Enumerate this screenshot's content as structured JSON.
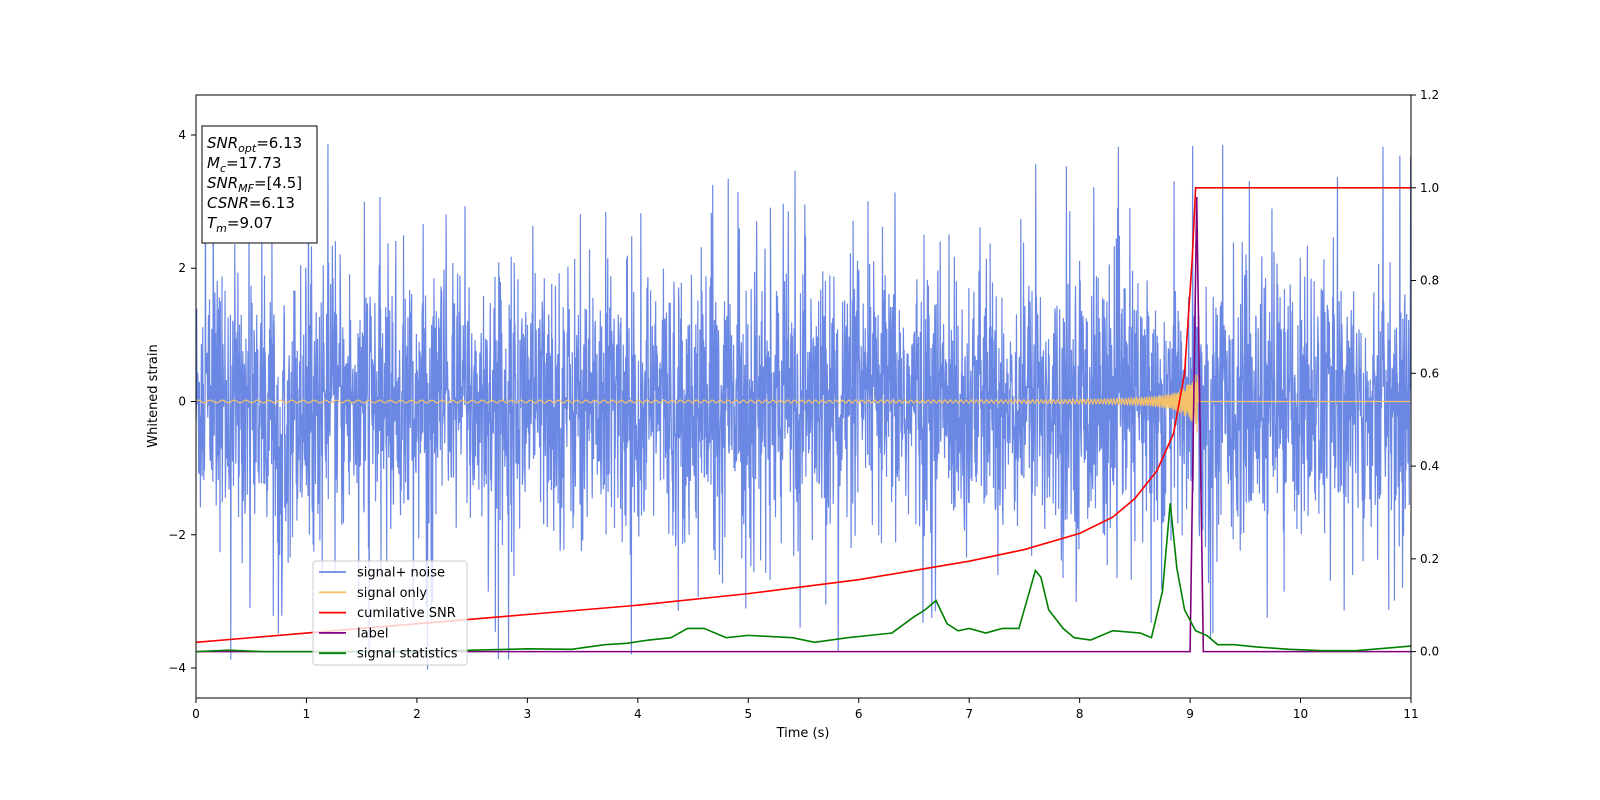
{
  "chart_data": {
    "type": "line",
    "xlabel": "Time (s)",
    "ylabel": "Whitened strain",
    "xlim": [
      0,
      11
    ],
    "ylim": [
      -4.45,
      4.6
    ],
    "y2lim": [
      -0.1,
      1.2
    ],
    "x_ticks": [
      "0",
      "1",
      "2",
      "3",
      "4",
      "5",
      "6",
      "7",
      "8",
      "9",
      "10",
      "11"
    ],
    "y_ticks": [
      "4",
      "2",
      "0",
      "−2",
      "−4"
    ],
    "y2_ticks": [
      "1.2",
      "1.0",
      "0.8",
      "0.6",
      "0.4",
      "0.2",
      "0.0"
    ],
    "grid": false,
    "legend_position": "lower-left",
    "textbox": [
      {
        "sym": "SNR",
        "sub": "opt",
        "value": "=6.13"
      },
      {
        "sym": "M",
        "sub": "c",
        "value": "=17.73"
      },
      {
        "sym": "SNR",
        "sub": "MF",
        "value": "=[4.5]"
      },
      {
        "sym": "CSNR",
        "sub": "",
        "value": "=6.13"
      },
      {
        "sym": "T",
        "sub": "m",
        "value": "=9.07"
      }
    ],
    "series": [
      {
        "name": "signal+ noise",
        "color": "#6a87e4",
        "axis": "left",
        "description": "noise ~N(0,1) with occasional spikes up to about 4.2"
      },
      {
        "name": "signal only",
        "color": "#f5c26b",
        "axis": "left",
        "chirp": {
          "t_merger": 9.07,
          "start_amplitude": 0.02,
          "end_amplitude": 0.5
        }
      },
      {
        "name": "cumilative SNR",
        "color": "#ff0000",
        "axis": "right",
        "x": [
          0,
          1,
          2,
          3,
          4,
          5,
          6,
          7,
          7.5,
          8,
          8.3,
          8.5,
          8.7,
          8.85,
          8.95,
          9.02,
          9.05,
          11
        ],
        "y": [
          0.02,
          0.04,
          0.06,
          0.08,
          0.1,
          0.125,
          0.155,
          0.195,
          0.22,
          0.255,
          0.29,
          0.33,
          0.39,
          0.47,
          0.6,
          0.85,
          1.0,
          1.0
        ]
      },
      {
        "name": "label",
        "color": "#800080",
        "axis": "right",
        "x": [
          0,
          9.0,
          9.06,
          9.12,
          11
        ],
        "y": [
          0.0,
          0.0,
          0.98,
          0.0,
          0.0
        ]
      },
      {
        "name": "signal statistics",
        "color": "#008000",
        "axis": "right",
        "x": [
          0,
          0.3,
          0.6,
          1.0,
          1.5,
          2.0,
          2.5,
          3.0,
          3.4,
          3.7,
          3.9,
          4.1,
          4.3,
          4.45,
          4.6,
          4.8,
          5.0,
          5.4,
          5.6,
          5.9,
          6.1,
          6.3,
          6.5,
          6.6,
          6.7,
          6.8,
          6.9,
          7.0,
          7.15,
          7.3,
          7.45,
          7.6,
          7.65,
          7.72,
          7.85,
          7.95,
          8.1,
          8.3,
          8.55,
          8.65,
          8.75,
          8.82,
          8.88,
          8.95,
          9.05,
          9.15,
          9.25,
          9.4,
          9.6,
          9.9,
          10.2,
          10.5,
          10.8,
          11.0
        ],
        "y": [
          0.0,
          0.003,
          0.0,
          0.0,
          0.0,
          0.0,
          0.003,
          0.006,
          0.005,
          0.015,
          0.018,
          0.025,
          0.03,
          0.05,
          0.05,
          0.03,
          0.035,
          0.03,
          0.02,
          0.03,
          0.035,
          0.04,
          0.075,
          0.09,
          0.11,
          0.06,
          0.045,
          0.05,
          0.04,
          0.05,
          0.05,
          0.175,
          0.16,
          0.09,
          0.05,
          0.03,
          0.025,
          0.045,
          0.04,
          0.03,
          0.13,
          0.32,
          0.18,
          0.09,
          0.045,
          0.035,
          0.015,
          0.015,
          0.01,
          0.005,
          0.002,
          0.002,
          0.008,
          0.012
        ]
      }
    ]
  }
}
